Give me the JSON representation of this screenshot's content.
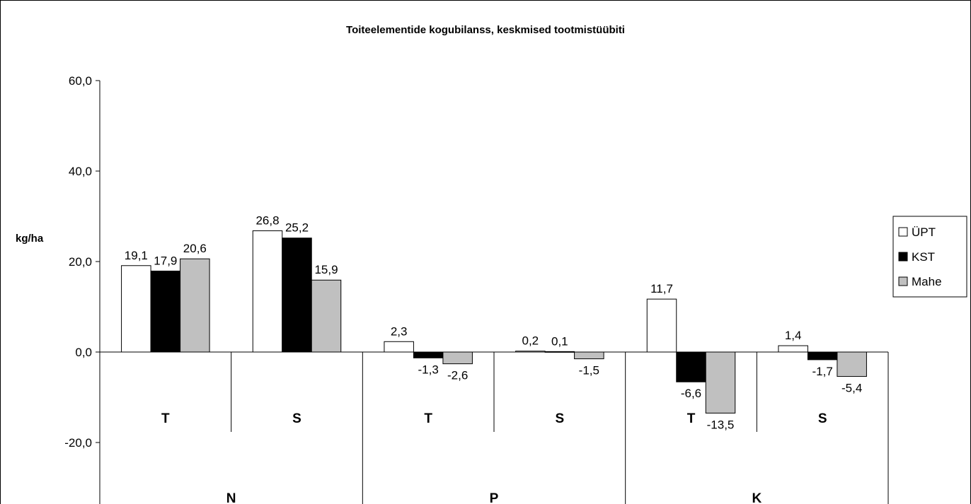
{
  "chart_data": {
    "type": "bar",
    "title": "Toiteelementide kogubilanss, keskmised tootmistüübiti",
    "ylabel": "kg/ha",
    "xlabel": "",
    "ylim": [
      -30,
      60
    ],
    "yticks": [
      -20,
      0,
      20,
      40,
      60
    ],
    "ytick_labels": [
      "-20,0",
      "0,0",
      "20,0",
      "40,0",
      "60,0"
    ],
    "gridlines": false,
    "legend_position": "right",
    "groups": [
      "N",
      "P",
      "K"
    ],
    "subcategories": [
      "T",
      "S",
      "T",
      "S",
      "T",
      "S"
    ],
    "series": [
      {
        "name": "ÜPT",
        "color": "#ffffff",
        "values": [
          19.1,
          26.8,
          2.3,
          0.2,
          11.7,
          1.4
        ],
        "labels": [
          "19,1",
          "26,8",
          "2,3",
          "0,2",
          "11,7",
          "1,4"
        ]
      },
      {
        "name": "KST",
        "color": "#000000",
        "values": [
          17.9,
          25.2,
          -1.3,
          0.1,
          -6.6,
          -1.7
        ],
        "labels": [
          "17,9",
          "25,2",
          "-1,3",
          "0,1",
          "-6,6",
          "-1,7"
        ]
      },
      {
        "name": "Mahe",
        "color": "#c0c0c0",
        "values": [
          20.6,
          15.9,
          -2.6,
          -1.5,
          -13.5,
          -5.4
        ],
        "labels": [
          "20,6",
          "15,9",
          "-2,6",
          "-1,5",
          "-13,5",
          "-5,4"
        ]
      }
    ]
  }
}
